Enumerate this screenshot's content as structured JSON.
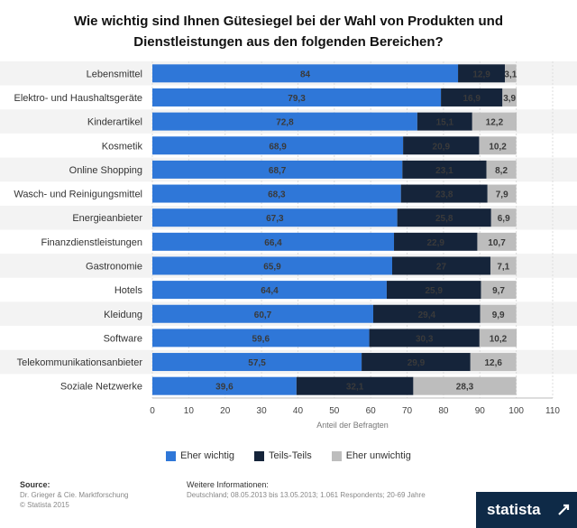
{
  "title": "Wie wichtig sind Ihnen Gütesiegel bei der Wahl von Produkten und Dienstleistungen aus den folgenden Bereichen?",
  "chart_data": {
    "type": "bar",
    "orientation": "horizontal",
    "stacked": true,
    "categories": [
      "Lebensmittel",
      "Elektro- und Haushaltsgeräte",
      "Kinderartikel",
      "Kosmetik",
      "Online Shopping",
      "Wasch- und Reinigungsmittel",
      "Energieanbieter",
      "Finanzdienstleistungen",
      "Gastronomie",
      "Hotels",
      "Kleidung",
      "Software",
      "Telekommunikationsanbieter",
      "Soziale Netzwerke"
    ],
    "series": [
      {
        "name": "Eher wichtig",
        "color": "#2f77d8",
        "values": [
          84,
          79.3,
          72.8,
          68.9,
          68.7,
          68.3,
          67.3,
          66.4,
          65.9,
          64.4,
          60.7,
          59.6,
          57.5,
          39.6
        ],
        "labels": [
          "84",
          "79,3",
          "72,8",
          "68,9",
          "68,7",
          "68,3",
          "67,3",
          "66,4",
          "65,9",
          "64,4",
          "60,7",
          "59,6",
          "57,5",
          "39,6"
        ]
      },
      {
        "name": "Teils-Teils",
        "color": "#15243a",
        "values": [
          12.9,
          16.9,
          15.1,
          20.9,
          23.1,
          23.8,
          25.8,
          22.9,
          27,
          25.9,
          29.4,
          30.3,
          29.9,
          32.1
        ],
        "labels": [
          "12,9",
          "16,9",
          "15,1",
          "20,9",
          "23,1",
          "23,8",
          "25,8",
          "22,9",
          "27",
          "25,9",
          "29,4",
          "30,3",
          "29,9",
          "32,1"
        ]
      },
      {
        "name": "Eher unwichtig",
        "color": "#bdbdbd",
        "values": [
          3.1,
          3.9,
          12.2,
          10.2,
          8.2,
          7.9,
          6.9,
          10.7,
          7.1,
          9.7,
          9.9,
          10.2,
          12.6,
          28.3
        ],
        "labels": [
          "3,1",
          "3,9",
          "12,2",
          "10,2",
          "8,2",
          "7,9",
          "6,9",
          "10,7",
          "7,1",
          "9,7",
          "9,9",
          "10,2",
          "12,6",
          "28,3"
        ]
      }
    ],
    "xlim": [
      0,
      110
    ],
    "xticks": [
      0,
      10,
      20,
      30,
      40,
      50,
      60,
      70,
      80,
      90,
      100,
      110
    ],
    "xlabel": "Anteil der Befragten",
    "legend_position": "bottom"
  },
  "footer": {
    "source_label": "Source:",
    "source_line1": "Dr. Grieger & Cie. Marktforschung",
    "source_line2": "© Statista 2015",
    "info_label": "Weitere Informationen:",
    "info_text": "Deutschland; 08.05.2013 bis 13.05.2013; 1.061 Respondents; 20-69 Jahre"
  },
  "logo_text": "statista"
}
